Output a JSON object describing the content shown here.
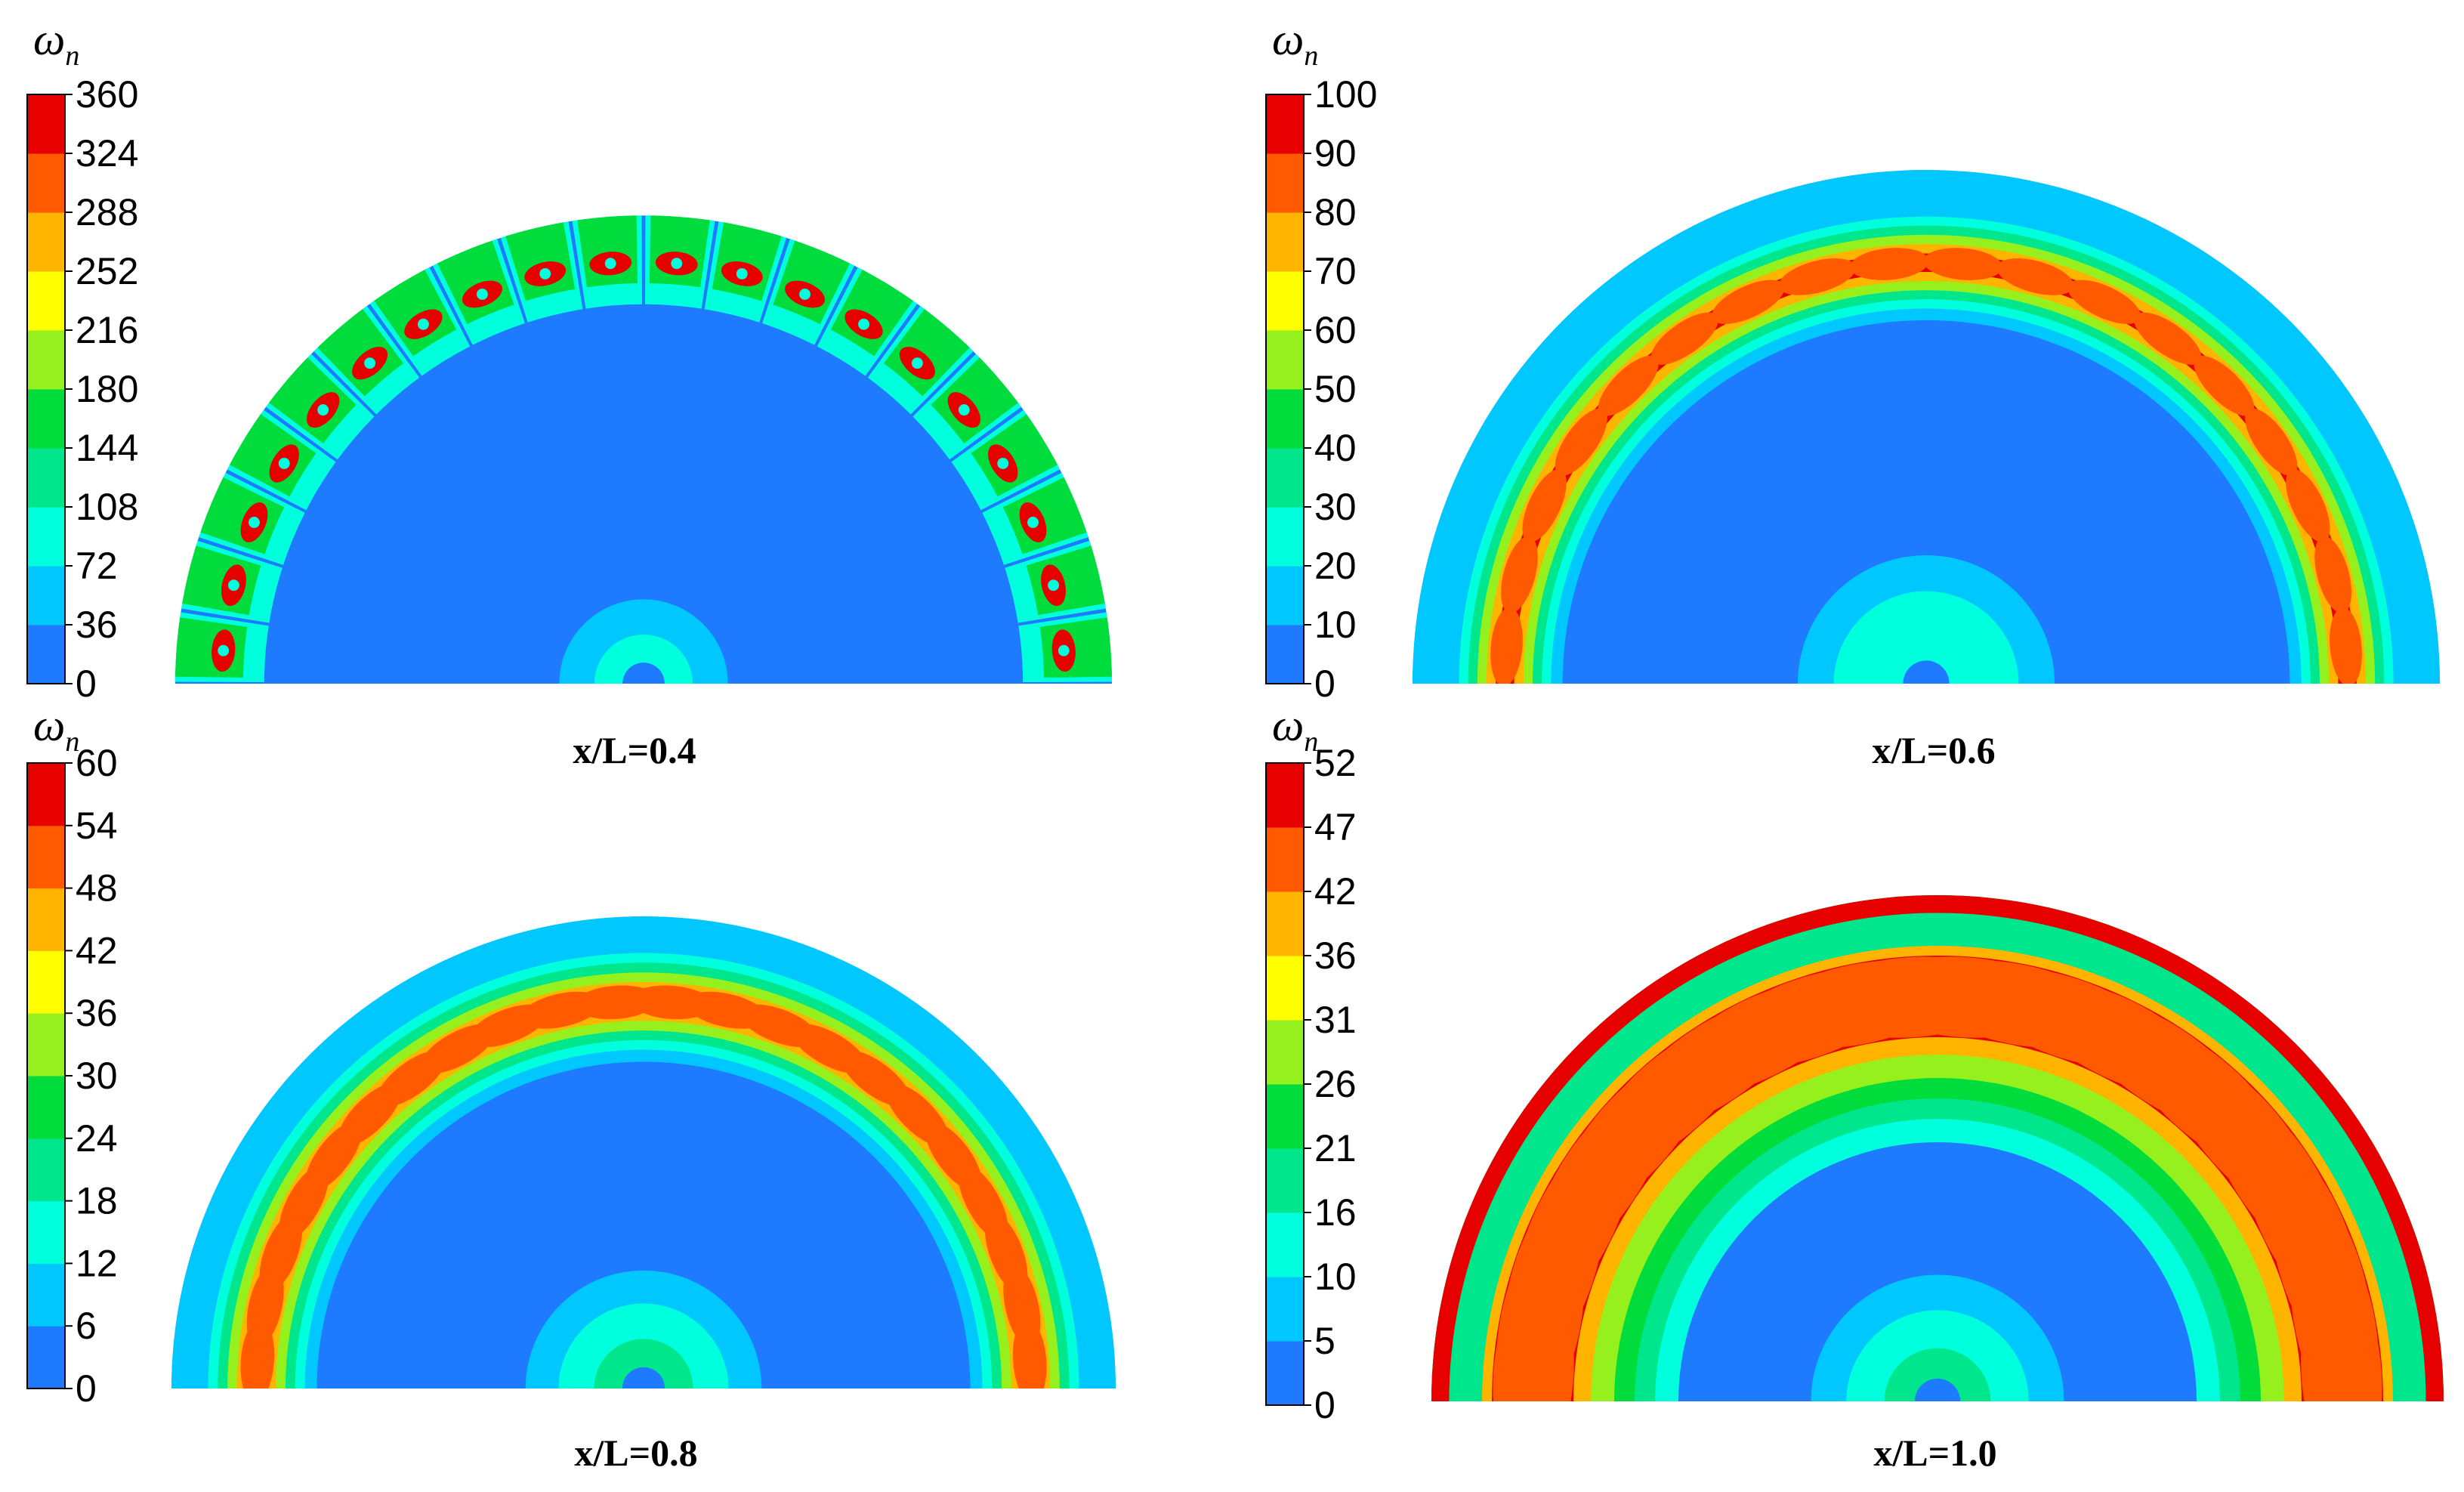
{
  "figure": {
    "colormap": [
      "#0000ff",
      "#1e7bff",
      "#00c8ff",
      "#00ffdd",
      "#00e68c",
      "#00dc3c",
      "#96f01e",
      "#ffff00",
      "#ffb400",
      "#ff5a00",
      "#e60000"
    ]
  },
  "chart_data": [
    {
      "type": "heatmap",
      "title": "x/L=0.4",
      "colorbar_label": "ω",
      "colorbar_label_sub": "n",
      "ticks": [
        "0",
        "36",
        "72",
        "108",
        "144",
        "180",
        "216",
        "252",
        "288",
        "324",
        "360"
      ],
      "range": [
        0,
        360
      ],
      "pattern": "vortex_pairs",
      "vortex_count": 20,
      "ring_mid_fraction": 0.9,
      "ring_width_fraction": 0.1,
      "peak_level": 10,
      "center_levels": [
        1,
        2,
        3
      ]
    },
    {
      "type": "heatmap",
      "title": "x/L=0.6",
      "colorbar_label": "ω",
      "colorbar_label_sub": "n",
      "ticks": [
        "0",
        "10",
        "20",
        "30",
        "40",
        "50",
        "60",
        "70",
        "80",
        "90",
        "100"
      ],
      "range": [
        0,
        100
      ],
      "pattern": "crescent_ring",
      "vortex_count": 18,
      "ring_mid_fraction": 0.82,
      "ring_width_fraction": 0.14,
      "peak_level": 10,
      "center_levels": [
        2,
        3,
        3
      ]
    },
    {
      "type": "heatmap",
      "title": "x/L=0.8",
      "colorbar_label": "ω",
      "colorbar_label_sub": "n",
      "ticks": [
        "0",
        "6",
        "12",
        "18",
        "24",
        "30",
        "36",
        "42",
        "48",
        "54",
        "60"
      ],
      "range": [
        0,
        60
      ],
      "pattern": "continuous_ring",
      "vortex_count": 22,
      "ring_mid_fraction": 0.82,
      "ring_width_fraction": 0.16,
      "peak_level": 10,
      "center_levels": [
        2,
        3,
        4
      ]
    },
    {
      "type": "heatmap",
      "title": "x/L=1.0",
      "colorbar_label": "ω",
      "colorbar_label_sub": "n",
      "ticks": [
        "0",
        "5",
        "10",
        "16",
        "21",
        "26",
        "31",
        "36",
        "42",
        "47",
        "52"
      ],
      "range": [
        0,
        52
      ],
      "pattern": "double_ring",
      "vortex_count": 24,
      "ring_mid_fraction": 0.8,
      "ring_width_fraction": 0.36,
      "peak_level": 10,
      "center_levels": [
        2,
        3,
        4
      ]
    }
  ]
}
